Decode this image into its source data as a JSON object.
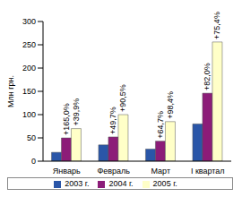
{
  "chart_data": {
    "type": "bar",
    "y_label": "Млн грн.",
    "categories": [
      "Январь",
      "Февраль",
      "Март",
      "I квартал"
    ],
    "series": [
      {
        "name": "2003 г.",
        "color": "#2a56a8",
        "values": [
          19,
          35,
          26,
          80
        ]
      },
      {
        "name": "2004 г.",
        "color": "#8c1c78",
        "values": [
          50,
          52,
          43,
          146
        ],
        "annotations": [
          "+165,0%",
          "+49,7%",
          "+64,7%",
          "+82,0%"
        ]
      },
      {
        "name": "2005 г.",
        "color": "#ffffc8",
        "values": [
          70,
          100,
          85,
          256
        ],
        "annotations": [
          "+39,9%",
          "+90,5%",
          "+98,4%",
          "+75,4%"
        ]
      }
    ],
    "ylim": [
      0,
      300
    ],
    "yticks": [
      0,
      50,
      100,
      150,
      200,
      250,
      300
    ],
    "grid": false,
    "legend": "bottom"
  }
}
